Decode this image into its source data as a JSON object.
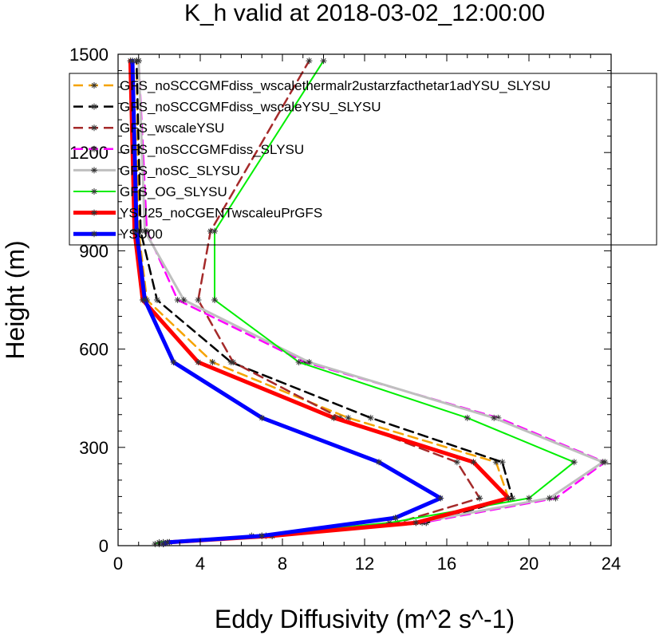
{
  "chart_data": {
    "type": "line",
    "title": "K_h valid at 2018-03-02_12:00:00",
    "xlabel": "Eddy Diffusivity (m^2 s^-1)",
    "ylabel": "Height (m)",
    "xlim": [
      0,
      24
    ],
    "ylim": [
      0,
      1500
    ],
    "xticks": [
      "0",
      "4",
      "8",
      "12",
      "16",
      "20",
      "24"
    ],
    "yticks": [
      "0",
      "300",
      "600",
      "900",
      "1200",
      "1500"
    ],
    "grid": false,
    "legend_position": "top-right",
    "series": [
      {
        "name": "GFS_noSCCGMFdiss_wscalethermalr2ustarzfacthetar1adYSU_SLYSU",
        "color": "#f5a300",
        "dash": "dashed",
        "width": 2.5,
        "points": [
          [
            2.2,
            5
          ],
          [
            2.5,
            10
          ],
          [
            7.5,
            30
          ],
          [
            15,
            70
          ],
          [
            19,
            145
          ],
          [
            18.4,
            255
          ],
          [
            11.2,
            390
          ],
          [
            4.6,
            560
          ],
          [
            1.4,
            750
          ],
          [
            1.0,
            960
          ],
          [
            0.9,
            1480
          ]
        ]
      },
      {
        "name": "GFS_noSCCGMFdiss_wscaleYSU_SLYSU",
        "color": "#000000",
        "dash": "dashed",
        "width": 2.5,
        "points": [
          [
            2.2,
            5
          ],
          [
            2.5,
            10
          ],
          [
            7.5,
            30
          ],
          [
            15,
            70
          ],
          [
            19.2,
            145
          ],
          [
            18.7,
            255
          ],
          [
            12.3,
            390
          ],
          [
            5.5,
            560
          ],
          [
            1.9,
            750
          ],
          [
            1.1,
            960
          ],
          [
            0.9,
            1480
          ]
        ]
      },
      {
        "name": "GFS_wscaleYSU",
        "color": "#a52a2a",
        "dash": "dashed",
        "width": 2.5,
        "points": [
          [
            2.2,
            5
          ],
          [
            2.5,
            10
          ],
          [
            7.5,
            30
          ],
          [
            13.6,
            70
          ],
          [
            17.6,
            145
          ],
          [
            16.5,
            255
          ],
          [
            10.8,
            390
          ],
          [
            5.6,
            560
          ],
          [
            3.9,
            750
          ],
          [
            4.5,
            960
          ],
          [
            9.3,
            1480
          ]
        ]
      },
      {
        "name": "GFS_noSCCGMFdiss_SLYSU",
        "color": "#ff00ff",
        "dash": "dashed",
        "width": 2.5,
        "points": [
          [
            2.0,
            5
          ],
          [
            2.2,
            10
          ],
          [
            7.2,
            30
          ],
          [
            14.8,
            70
          ],
          [
            21.3,
            145
          ],
          [
            23.7,
            255
          ],
          [
            18.5,
            390
          ],
          [
            9.1,
            560
          ],
          [
            2.9,
            750
          ],
          [
            1.4,
            960
          ],
          [
            1.0,
            1480
          ]
        ]
      },
      {
        "name": "GFS_noSC_SLYSU",
        "color": "#bfbfbf",
        "dash": "solid",
        "width": 3,
        "points": [
          [
            2.0,
            5
          ],
          [
            2.2,
            10
          ],
          [
            7.0,
            30
          ],
          [
            14.5,
            70
          ],
          [
            21.0,
            145
          ],
          [
            23.6,
            255
          ],
          [
            18.3,
            390
          ],
          [
            9.3,
            560
          ],
          [
            3.2,
            750
          ],
          [
            1.3,
            960
          ],
          [
            1.0,
            1480
          ]
        ]
      },
      {
        "name": "GFS_OG_SLYSU",
        "color": "#00ee00",
        "dash": "solid",
        "width": 2,
        "points": [
          [
            1.8,
            5
          ],
          [
            2.0,
            10
          ],
          [
            6.5,
            30
          ],
          [
            13.2,
            70
          ],
          [
            20.0,
            145
          ],
          [
            22.2,
            255
          ],
          [
            17.0,
            390
          ],
          [
            8.8,
            560
          ],
          [
            4.7,
            750
          ],
          [
            4.7,
            960
          ],
          [
            10.0,
            1480
          ]
        ]
      },
      {
        "name": "YSU25_noCGENTwscaleuPrGFS",
        "color": "#ff0000",
        "dash": "solid",
        "width": 5,
        "points": [
          [
            2.2,
            5
          ],
          [
            2.4,
            10
          ],
          [
            7.5,
            30
          ],
          [
            14.5,
            70
          ],
          [
            19.0,
            145
          ],
          [
            17.3,
            255
          ],
          [
            10.5,
            390
          ],
          [
            3.9,
            560
          ],
          [
            1.2,
            750
          ],
          [
            0.8,
            960
          ],
          [
            0.6,
            1480
          ]
        ]
      },
      {
        "name": "YSU00",
        "color": "#0000ff",
        "dash": "solid",
        "width": 5,
        "points": [
          [
            2.2,
            5
          ],
          [
            2.4,
            10
          ],
          [
            7.0,
            30
          ],
          [
            13.5,
            85
          ],
          [
            15.7,
            145
          ],
          [
            12.7,
            255
          ],
          [
            7.0,
            390
          ],
          [
            2.7,
            560
          ],
          [
            1.3,
            750
          ],
          [
            0.9,
            960
          ],
          [
            0.7,
            1480
          ]
        ]
      }
    ]
  }
}
